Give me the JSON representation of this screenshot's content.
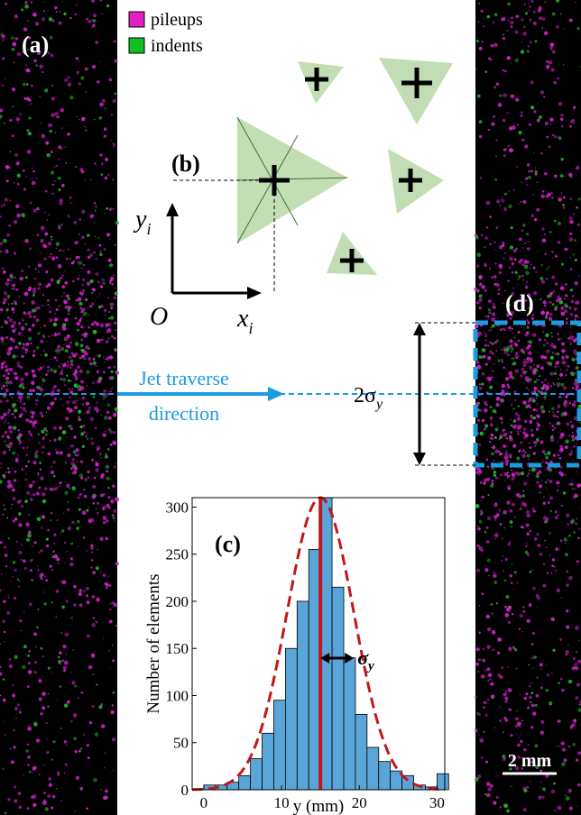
{
  "panels": {
    "a": "(a)",
    "b": "(b)",
    "c": "(c)",
    "d": "(d)"
  },
  "legend": {
    "pileups": "pileups",
    "indents": "indents"
  },
  "diagram": {
    "yi": "y",
    "yi_sub": "i",
    "origin": "O",
    "xi": "x",
    "xi_sub": "i",
    "jet": [
      "Jet traverse",
      "direction"
    ],
    "two_sigma": "2σ",
    "two_sigma_sub": "y",
    "sigma": "σ",
    "sigma_sub": "y"
  },
  "scale_bar": "2 mm",
  "chart_data": {
    "type": "histogram",
    "xlabel": "y (mm)",
    "ylabel": "Number of elements",
    "bins": [
      0,
      1.5,
      3,
      4.5,
      6,
      7.5,
      9,
      10.5,
      12,
      13.5,
      15,
      16.5,
      18,
      19.5,
      21,
      22.5,
      24,
      25.5,
      27,
      28.5,
      30,
      31.5
    ],
    "counts": [
      5,
      5,
      8,
      15,
      33,
      60,
      95,
      150,
      200,
      255,
      310,
      215,
      140,
      80,
      45,
      30,
      20,
      15,
      5,
      3,
      17
    ],
    "color": "#5aa5d8",
    "xlim": [
      -1.5,
      31
    ],
    "ylim": [
      0,
      310
    ],
    "xticks": [
      0,
      10,
      20,
      30
    ],
    "yticks": [
      0,
      50,
      100,
      150,
      200,
      250,
      300
    ],
    "fit": {
      "mean": 15,
      "sd": 4.3,
      "peak": 310,
      "color": "#c0181c"
    }
  }
}
